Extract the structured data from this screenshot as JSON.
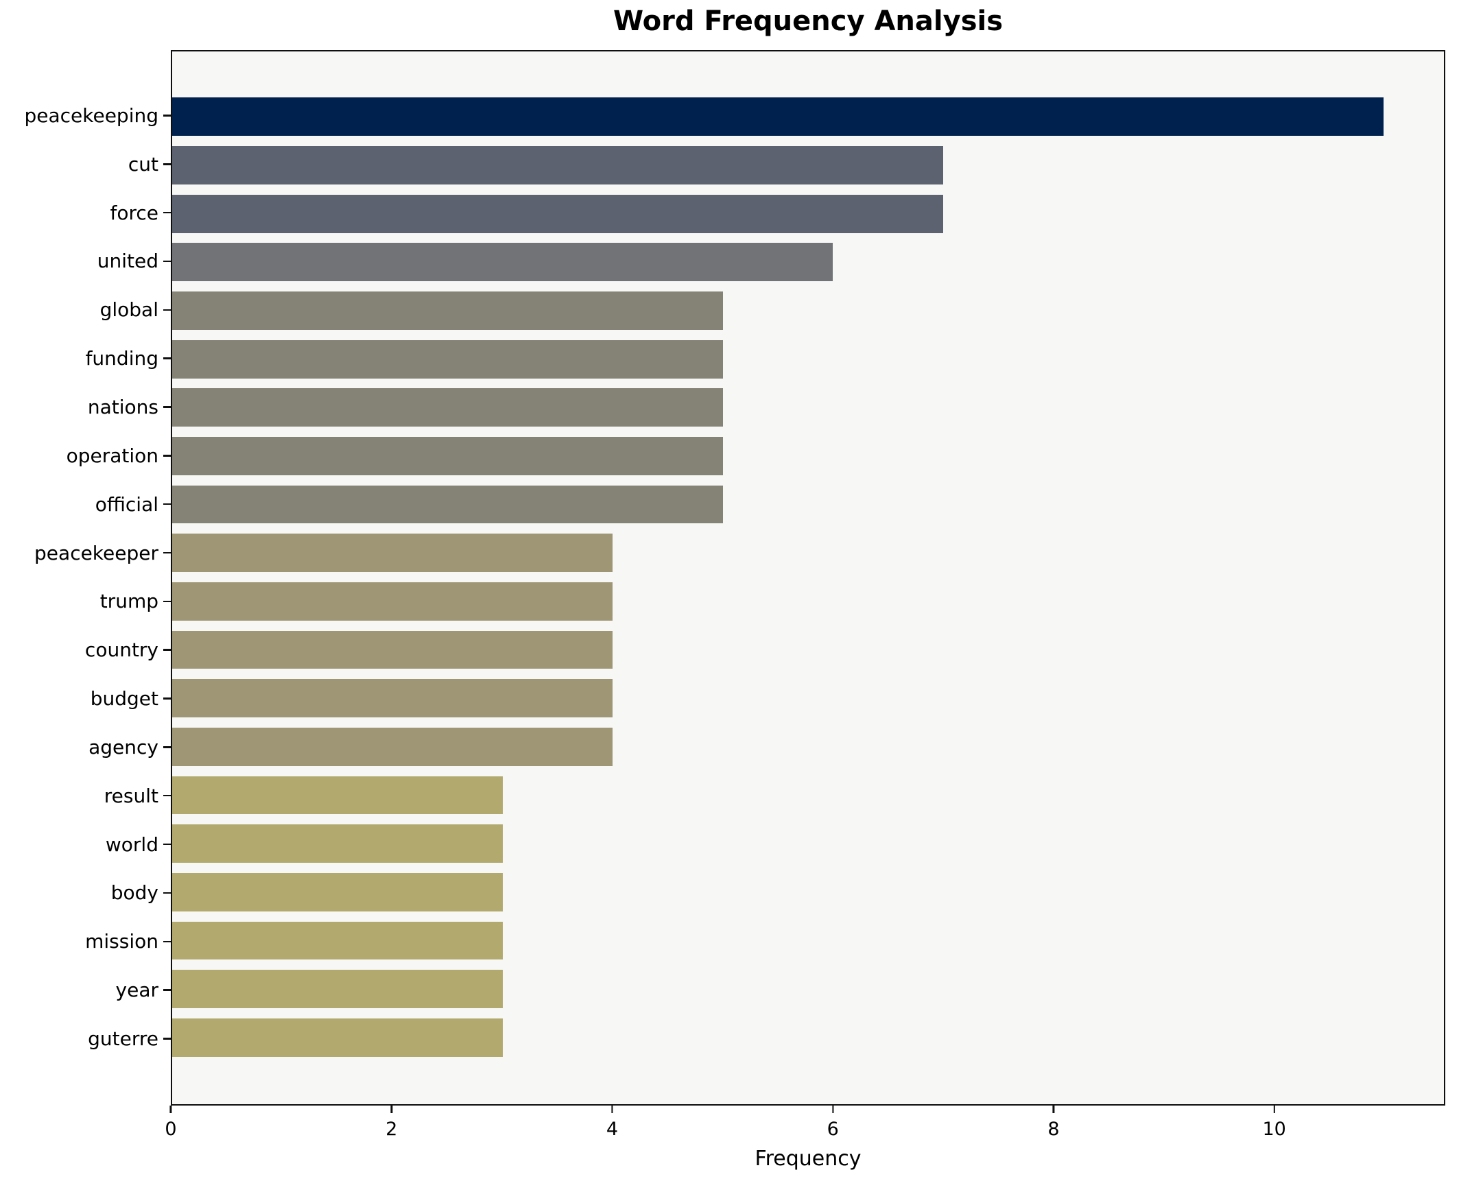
{
  "chart_data": {
    "type": "bar",
    "orientation": "horizontal",
    "title": "Word Frequency Analysis",
    "xlabel": "Frequency",
    "ylabel": "",
    "xlim": [
      0,
      11.55
    ],
    "xticks": [
      0,
      2,
      4,
      6,
      8,
      10
    ],
    "grid": false,
    "legend": false,
    "plot_background": "#f7f7f6",
    "figure_background": "#ffffff",
    "spine_color": "#0f0f0f",
    "categories": [
      "peacekeeping",
      "cut",
      "force",
      "united",
      "global",
      "funding",
      "nations",
      "operation",
      "official",
      "peacekeeper",
      "trump",
      "country",
      "budget",
      "agency",
      "result",
      "world",
      "body",
      "mission",
      "year",
      "guterre"
    ],
    "values": [
      11,
      7,
      7,
      6,
      5,
      5,
      5,
      5,
      5,
      4,
      4,
      4,
      4,
      4,
      3,
      3,
      3,
      3,
      3,
      3
    ],
    "bars": [
      {
        "label": "peacekeeping",
        "value": 11,
        "color": "#00214e"
      },
      {
        "label": "cut",
        "value": 7,
        "color": "#5d6270"
      },
      {
        "label": "force",
        "value": 7,
        "color": "#5d6270"
      },
      {
        "label": "united",
        "value": 6,
        "color": "#717377"
      },
      {
        "label": "global",
        "value": 5,
        "color": "#858376"
      },
      {
        "label": "funding",
        "value": 5,
        "color": "#858376"
      },
      {
        "label": "nations",
        "value": 5,
        "color": "#858376"
      },
      {
        "label": "operation",
        "value": 5,
        "color": "#858376"
      },
      {
        "label": "official",
        "value": 5,
        "color": "#858376"
      },
      {
        "label": "peacekeeper",
        "value": 4,
        "color": "#9e9674"
      },
      {
        "label": "trump",
        "value": 4,
        "color": "#9e9674"
      },
      {
        "label": "country",
        "value": 4,
        "color": "#9e9674"
      },
      {
        "label": "budget",
        "value": 4,
        "color": "#9e9674"
      },
      {
        "label": "agency",
        "value": 4,
        "color": "#9e9674"
      },
      {
        "label": "result",
        "value": 3,
        "color": "#b2a96e"
      },
      {
        "label": "world",
        "value": 3,
        "color": "#b2a96e"
      },
      {
        "label": "body",
        "value": 3,
        "color": "#b2a96e"
      },
      {
        "label": "mission",
        "value": 3,
        "color": "#b2a96e"
      },
      {
        "label": "year",
        "value": 3,
        "color": "#b2a96e"
      },
      {
        "label": "guterre",
        "value": 3,
        "color": "#b2a96e"
      }
    ]
  }
}
